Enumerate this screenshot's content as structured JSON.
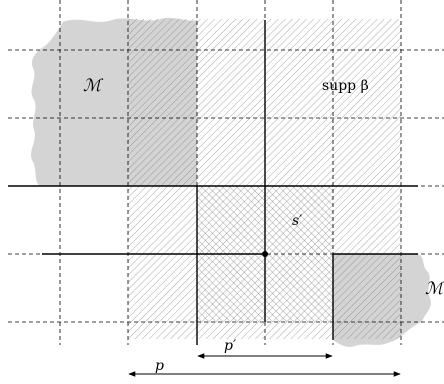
{
  "labels": {
    "region_left": "ℳ",
    "region_right": "ℳ",
    "support": "supp β",
    "cell": "s′",
    "width_inner": "p′",
    "width_outer": "p"
  },
  "colors": {
    "region_fill": "#d4d4d4",
    "hatch": "#6e6e6e",
    "line": "#000000"
  }
}
